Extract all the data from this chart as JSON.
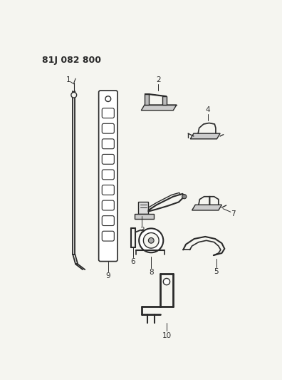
{
  "title": "81J 082 800",
  "bg_color": "#f5f5f0",
  "line_color": "#2a2a2a",
  "title_fontsize": 9,
  "label_fontsize": 7.5
}
